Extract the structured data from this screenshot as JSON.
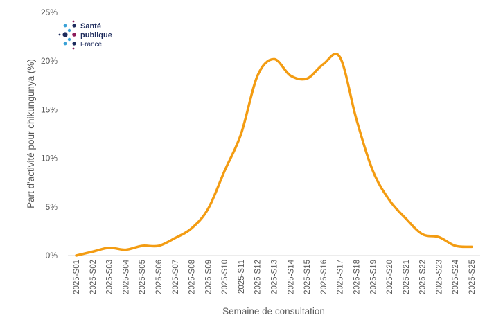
{
  "logo": {
    "line1": "Santé",
    "line2": "publique",
    "line3": "France",
    "colors": [
      "#3aa1d6",
      "#1d2b5c",
      "#8c1c5b"
    ]
  },
  "chart_data": {
    "type": "line",
    "title": "",
    "xlabel": "Semaine de consultation",
    "ylabel": "Part d'activité pour chikungunya (%)",
    "ylim": [
      0,
      25
    ],
    "yticks": [
      0,
      5,
      10,
      15,
      20,
      25
    ],
    "ytick_labels": [
      "0%",
      "5%",
      "10%",
      "15%",
      "20%",
      "25%"
    ],
    "grid": false,
    "categories": [
      "2025-S01",
      "2025-S02",
      "2025-S03",
      "2025-S04",
      "2025-S05",
      "2025-S06",
      "2025-S07",
      "2025-S08",
      "2025-S09",
      "2025-S10",
      "2025-S11",
      "2025-S12",
      "2025-S13",
      "2025-S14",
      "2025-S15",
      "2025-S16",
      "2025-S17",
      "2025-S18",
      "2025-S19",
      "2025-S20",
      "2025-S21",
      "2025-S22",
      "2025-S23",
      "2025-S24",
      "2025-S25"
    ],
    "series": [
      {
        "name": "chikungunya",
        "color": "#f39c12",
        "values": [
          0.0,
          0.4,
          0.8,
          0.6,
          1.0,
          1.0,
          1.8,
          2.8,
          4.8,
          8.7,
          12.5,
          18.5,
          20.2,
          18.5,
          18.2,
          19.7,
          20.4,
          14.0,
          8.7,
          5.7,
          3.8,
          2.2,
          1.9,
          1.0,
          0.9
        ]
      }
    ]
  }
}
